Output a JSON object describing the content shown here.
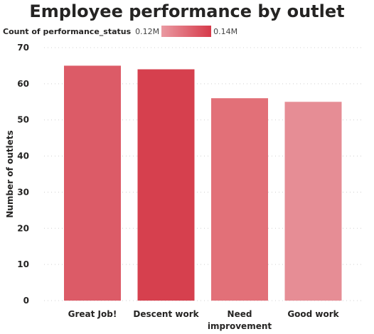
{
  "chart_data": {
    "type": "bar",
    "title": "Employee performance by outlet",
    "ylabel": "Number of outlets",
    "xlabel": "",
    "categories": [
      "Great Job!",
      "Descent work",
      "Need improvement",
      "Good work"
    ],
    "category_lines": [
      [
        "Great Job!"
      ],
      [
        "Descent work"
      ],
      [
        "Need",
        "improvement"
      ],
      [
        "Good work"
      ]
    ],
    "values": [
      65,
      64,
      56,
      55
    ],
    "ylim": [
      0,
      70
    ],
    "yticks": [
      "0",
      "10",
      "20",
      "30",
      "40",
      "50",
      "60",
      "70"
    ],
    "grid": true,
    "color_legend": {
      "title": "Count of performance_status",
      "min_label": "0.12M",
      "max_label": "0.14M",
      "min_color": "#ea9aa2",
      "max_color": "#d63a4a"
    },
    "bar_colors": [
      "#dc5b67",
      "#d6404e",
      "#e27078",
      "#e68d95"
    ]
  }
}
